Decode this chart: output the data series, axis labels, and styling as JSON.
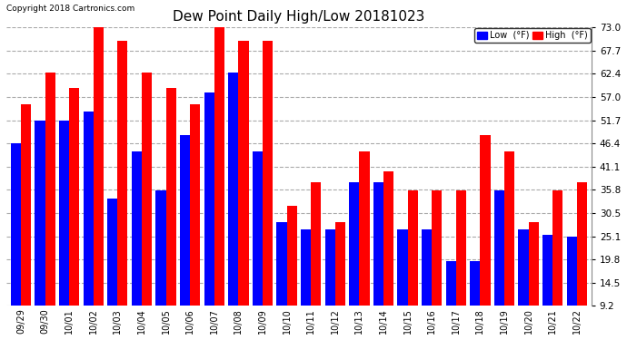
{
  "title": "Dew Point Daily High/Low 20181023",
  "copyright": "Copyright 2018 Cartronics.com",
  "dates": [
    "09/29",
    "09/30",
    "10/01",
    "10/02",
    "10/03",
    "10/04",
    "10/05",
    "10/06",
    "10/07",
    "10/08",
    "10/09",
    "10/10",
    "10/11",
    "10/12",
    "10/13",
    "10/14",
    "10/15",
    "10/16",
    "10/17",
    "10/18",
    "10/19",
    "10/20",
    "10/21",
    "10/22"
  ],
  "low": [
    46.4,
    51.7,
    51.7,
    53.6,
    33.8,
    44.6,
    35.6,
    48.2,
    58.0,
    62.6,
    44.6,
    28.4,
    26.6,
    26.6,
    37.4,
    37.4,
    26.6,
    26.6,
    19.4,
    19.4,
    35.6,
    26.6,
    25.5,
    25.1
  ],
  "high": [
    55.4,
    62.6,
    59.0,
    73.0,
    69.8,
    62.6,
    59.0,
    55.4,
    73.0,
    69.8,
    69.8,
    32.0,
    37.4,
    28.4,
    44.6,
    40.0,
    35.6,
    35.6,
    35.6,
    48.2,
    44.6,
    28.4,
    35.6,
    37.4
  ],
  "low_color": "#0000ff",
  "high_color": "#ff0000",
  "bg_color": "#ffffff",
  "grid_color": "#aaaaaa",
  "ylim_min": 9.2,
  "ylim_max": 73.0,
  "yticks": [
    9.2,
    14.5,
    19.8,
    25.1,
    30.5,
    35.8,
    41.1,
    46.4,
    51.7,
    57.0,
    62.4,
    67.7,
    73.0
  ],
  "bar_width": 0.42,
  "figsize": [
    6.9,
    3.75
  ],
  "dpi": 100
}
